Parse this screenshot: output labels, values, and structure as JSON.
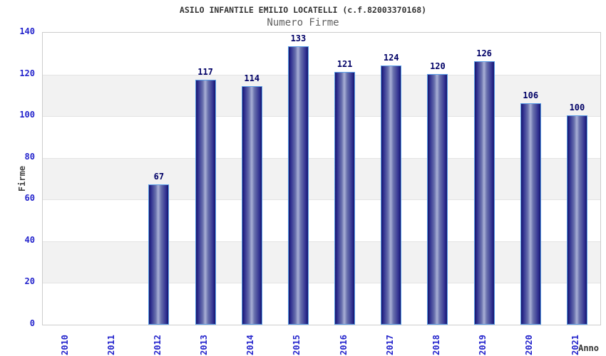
{
  "header": {
    "title": "ASILO INFANTILE EMILIO LOCATELLI (c.f.82003370168)",
    "subtitle": "Numero Firme"
  },
  "chart_data": {
    "type": "bar",
    "title": "ASILO INFANTILE EMILIO LOCATELLI (c.f.82003370168)",
    "subtitle": "Numero Firme",
    "categories": [
      "2010",
      "2011",
      "2012",
      "2013",
      "2014",
      "2015",
      "2016",
      "2017",
      "2018",
      "2019",
      "2020",
      "2021"
    ],
    "values": [
      0,
      0,
      67,
      117,
      114,
      133,
      121,
      124,
      120,
      126,
      106,
      100
    ],
    "xlabel": "Anno",
    "ylabel": "Firme",
    "ylim": [
      0,
      140
    ],
    "yticks": [
      0,
      20,
      40,
      60,
      80,
      100,
      120,
      140
    ],
    "grid": "alternating-horizontal-bands",
    "legend": "none",
    "bar_value_labels_shown": true
  },
  "colors": {
    "background": "#ffffff",
    "band_gray": "#f2f2f2",
    "band_white": "#ffffff",
    "gridline": "#e3e3e3",
    "plot_border": "#cccccc",
    "bar_dark": "#15156a",
    "bar_mid": "#2d2d8e",
    "bar_highlight": "#a9b0d6",
    "bar_border": "#5b9fe8",
    "tick_label": "#2323cc",
    "value_label": "#000066",
    "title": "#333333",
    "subtitle": "#606060",
    "axis_title": "#444444"
  }
}
